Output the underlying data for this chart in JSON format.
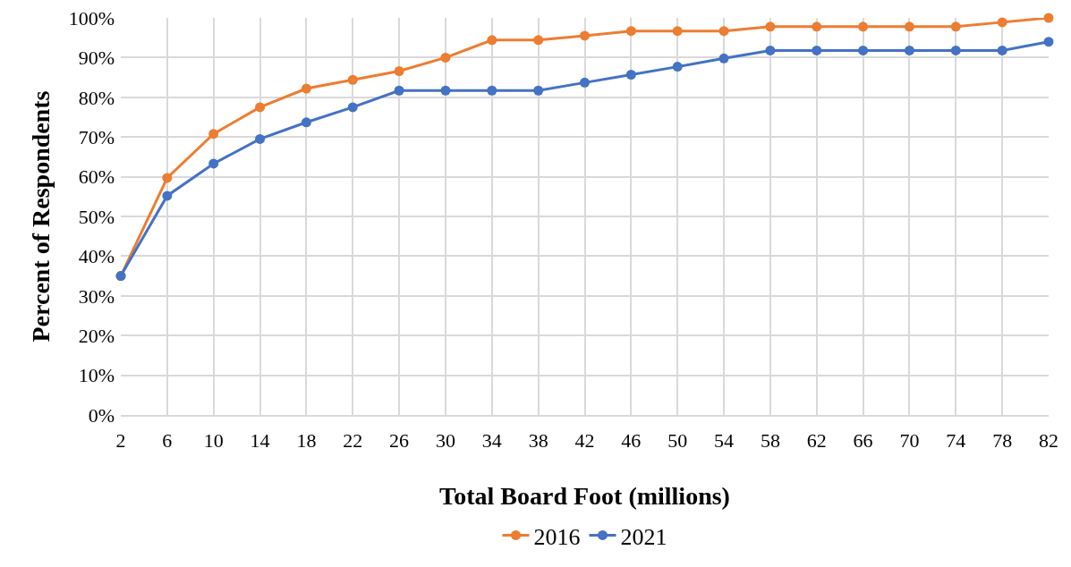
{
  "chart_data": {
    "type": "line",
    "xlabel": "Total Board Foot (millions)",
    "ylabel": "Percent of Respondents",
    "x": [
      2,
      6,
      10,
      14,
      18,
      22,
      26,
      30,
      34,
      38,
      42,
      46,
      50,
      54,
      58,
      62,
      66,
      70,
      74,
      78,
      82
    ],
    "xlim": [
      2,
      82
    ],
    "xticks": [
      2,
      6,
      10,
      14,
      18,
      22,
      26,
      30,
      34,
      38,
      42,
      46,
      50,
      54,
      58,
      62,
      66,
      70,
      74,
      78,
      82
    ],
    "series": [
      {
        "name": "2016",
        "color": "#ed7d31",
        "values": [
          35,
          59.7,
          70.8,
          77.5,
          82.2,
          84.4,
          86.6,
          90,
          94.4,
          94.4,
          95.5,
          96.7,
          96.7,
          96.7,
          97.8,
          97.8,
          97.8,
          97.8,
          97.8,
          98.9,
          100
        ]
      },
      {
        "name": "2021",
        "color": "#4472c4",
        "values": [
          35,
          55.2,
          63.3,
          69.5,
          73.7,
          77.5,
          81.7,
          81.7,
          81.7,
          81.7,
          83.7,
          85.7,
          87.7,
          89.8,
          91.8,
          91.8,
          91.8,
          91.8,
          91.8,
          91.8,
          94
        ]
      }
    ],
    "ylim": [
      0,
      100
    ],
    "yticks": [
      {
        "value": 0,
        "label": "0%"
      },
      {
        "value": 10,
        "label": "10%"
      },
      {
        "value": 20,
        "label": "20%"
      },
      {
        "value": 30,
        "label": "30%"
      },
      {
        "value": 40,
        "label": "40%"
      },
      {
        "value": 50,
        "label": "50%"
      },
      {
        "value": 60,
        "label": "60%"
      },
      {
        "value": 70,
        "label": "70%"
      },
      {
        "value": 80,
        "label": "80%"
      },
      {
        "value": 90,
        "label": "90%"
      },
      {
        "value": 100,
        "label": "100%"
      }
    ],
    "grid": true,
    "legend": "bottom",
    "marker": "circle",
    "line_style": "solid"
  }
}
